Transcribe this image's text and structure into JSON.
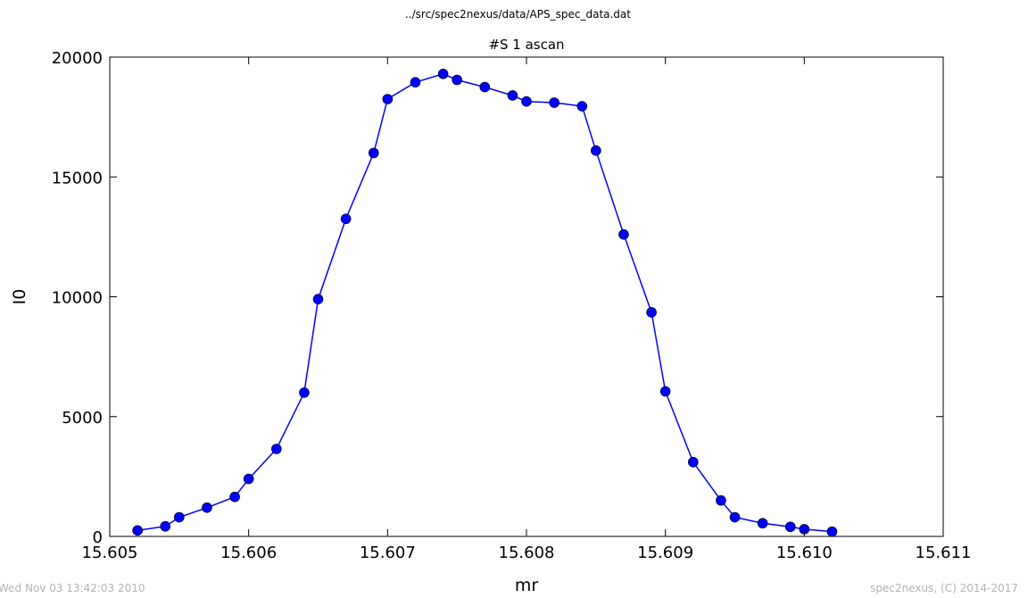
{
  "header": {
    "suptitle": "../src/spec2nexus/data/APS_spec_data.dat"
  },
  "footer": {
    "left": "Wed Nov 03 13:42:03 2010",
    "right": "spec2nexus, (C) 2014-2017"
  },
  "chart_data": {
    "type": "line",
    "title": "#S 1 ascan",
    "xlabel": "mr",
    "ylabel": "I0",
    "xlim": [
      15.605,
      15.611
    ],
    "ylim": [
      0,
      20000
    ],
    "xticks": [
      "15.605",
      "15.606",
      "15.607",
      "15.608",
      "15.609",
      "15.610",
      "15.611"
    ],
    "yticks": [
      "0",
      "5000",
      "10000",
      "15000",
      "20000"
    ],
    "grid": false,
    "series": [
      {
        "color": "#0000ff",
        "marker": "circle",
        "x": [
          15.6052,
          15.6054,
          15.6055,
          15.6057,
          15.6059,
          15.606,
          15.6062,
          15.6064,
          15.6065,
          15.6067,
          15.6069,
          15.607,
          15.6072,
          15.6074,
          15.6075,
          15.6077,
          15.6079,
          15.608,
          15.6082,
          15.6084,
          15.6085,
          15.6087,
          15.6089,
          15.609,
          15.6092,
          15.6094,
          15.6095,
          15.6097,
          15.6099,
          15.61,
          15.6102
        ],
        "y": [
          250,
          420,
          800,
          1200,
          1650,
          2400,
          3650,
          6000,
          9900,
          13250,
          16000,
          18250,
          18950,
          19300,
          19050,
          18750,
          18400,
          18150,
          18100,
          17950,
          16100,
          12600,
          9350,
          6050,
          3100,
          1500,
          800,
          550,
          400,
          300,
          200
        ]
      }
    ]
  }
}
